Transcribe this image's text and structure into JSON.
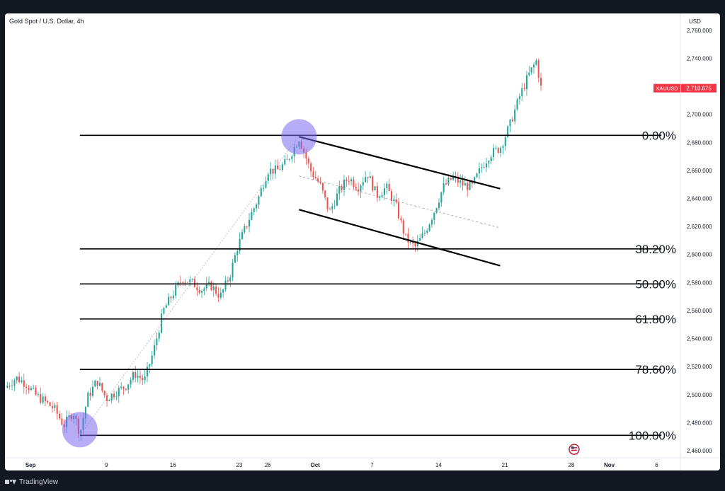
{
  "header": {
    "title": "Gold Spot / U.S. Dollar, 4h",
    "currency": "USD"
  },
  "footer": {
    "brand": "TradingView",
    "logo_icon": "tradingview-logo-icon"
  },
  "chart_data": {
    "type": "candlestick",
    "symbol": "XAUUSD",
    "last_price": 2718.675,
    "last_price_label": "2,718.675",
    "ylim": [
      2455,
      2772
    ],
    "y_ticks": [
      2460,
      2480,
      2500,
      2520,
      2540,
      2560,
      2580,
      2600,
      2620,
      2640,
      2660,
      2680,
      2700,
      2720,
      2740,
      2760
    ],
    "y_tick_labels": [
      "2,460.000",
      "2,480.000",
      "2,500.000",
      "2,520.000",
      "2,540.000",
      "2,560.000",
      "2,580.000",
      "2,600.000",
      "2,620.000",
      "2,640.000",
      "2,660.000",
      "2,680.000",
      "2,700.000",
      "2,720.000",
      "2,740.000",
      "2,760.000"
    ],
    "x_ticks": [
      {
        "label": "Sep",
        "day": 1
      },
      {
        "label": "9",
        "day": 9
      },
      {
        "label": "16",
        "day": 16
      },
      {
        "label": "23",
        "day": 23
      },
      {
        "label": "26",
        "day": 26
      },
      {
        "label": "Oct",
        "day": 31
      },
      {
        "label": "7",
        "day": 37
      },
      {
        "label": "14",
        "day": 44
      },
      {
        "label": "21",
        "day": 51
      },
      {
        "label": "28",
        "day": 58
      },
      {
        "label": "Nov",
        "day": 62
      },
      {
        "label": "6",
        "day": 67
      }
    ],
    "x_range_days": [
      -1.7,
      69.5
    ],
    "close_path": [
      [
        -1.7,
        2505
      ],
      [
        -0.5,
        2512
      ],
      [
        0.5,
        2508
      ],
      [
        1.5,
        2500
      ],
      [
        2.5,
        2495
      ],
      [
        3.5,
        2490
      ],
      [
        4.5,
        2478
      ],
      [
        5.5,
        2488
      ],
      [
        6.2,
        2472
      ],
      [
        7,
        2498
      ],
      [
        8,
        2510
      ],
      [
        9,
        2497
      ],
      [
        10,
        2502
      ],
      [
        11,
        2506
      ],
      [
        12,
        2515
      ],
      [
        13,
        2510
      ],
      [
        14,
        2532
      ],
      [
        15,
        2560
      ],
      [
        16,
        2572
      ],
      [
        17,
        2583
      ],
      [
        18,
        2580
      ],
      [
        19,
        2575
      ],
      [
        20,
        2578
      ],
      [
        21,
        2570
      ],
      [
        22,
        2585
      ],
      [
        22.8,
        2605
      ],
      [
        24,
        2625
      ],
      [
        25,
        2640
      ],
      [
        26,
        2660
      ],
      [
        27,
        2660
      ],
      [
        28,
        2666
      ],
      [
        29.3,
        2683
      ],
      [
        30.5,
        2660
      ],
      [
        31.5,
        2650
      ],
      [
        32.5,
        2630
      ],
      [
        33.5,
        2645
      ],
      [
        34.5,
        2655
      ],
      [
        35.5,
        2648
      ],
      [
        36.5,
        2658
      ],
      [
        37.5,
        2642
      ],
      [
        38.5,
        2648
      ],
      [
        39.5,
        2635
      ],
      [
        40.5,
        2612
      ],
      [
        41.5,
        2605
      ],
      [
        42.5,
        2615
      ],
      [
        43.5,
        2630
      ],
      [
        44.5,
        2648
      ],
      [
        45.5,
        2655
      ],
      [
        46.5,
        2650
      ],
      [
        47.5,
        2648
      ],
      [
        48.5,
        2662
      ],
      [
        49.5,
        2672
      ],
      [
        50.5,
        2676
      ],
      [
        51.5,
        2692
      ],
      [
        52.5,
        2712
      ],
      [
        53.5,
        2728
      ],
      [
        54.3,
        2738
      ],
      [
        54.8,
        2719
      ]
    ],
    "fibonacci": {
      "levels": [
        {
          "label": "0.00%",
          "price": 2685
        },
        {
          "label": "38.20%",
          "price": 2604
        },
        {
          "label": "50.00%",
          "price": 2579
        },
        {
          "label": "61.80%",
          "price": 2554
        },
        {
          "label": "78.60%",
          "price": 2518
        },
        {
          "label": "100.00%",
          "price": 2471
        }
      ],
      "start_day": 6.2,
      "end_day": 67.5,
      "swing_low": {
        "day": 6.2,
        "price": 2471
      },
      "swing_high": {
        "day": 29.3,
        "price": 2685
      }
    },
    "channel": {
      "upper": [
        [
          29.3,
          2684
        ],
        [
          50.5,
          2647
        ]
      ],
      "lower": [
        [
          29.3,
          2632
        ],
        [
          50.5,
          2592
        ]
      ],
      "midline": [
        [
          29.3,
          2656
        ],
        [
          50.5,
          2619
        ]
      ]
    },
    "markers": [
      {
        "day": 6.2,
        "price": 2475,
        "icon": "swing-low-circle-icon"
      },
      {
        "day": 29.3,
        "price": 2684,
        "icon": "swing-high-circle-icon"
      }
    ],
    "event_icon": {
      "day": 58.3,
      "price": 2461,
      "icon": "us-flag-event-icon"
    },
    "colors": {
      "up": "#26a69a",
      "down": "#ef5350",
      "fib_line": "#000000",
      "marker": "#7b68ee",
      "price_label_bg": "#f23645"
    }
  }
}
